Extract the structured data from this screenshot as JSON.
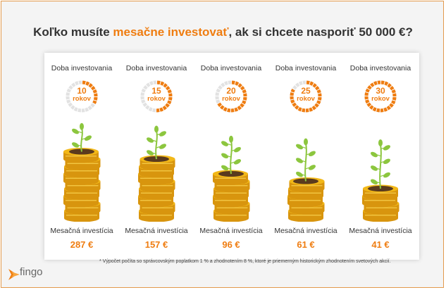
{
  "title": {
    "part1": "Koľko musíte ",
    "highlight": "mesačne investovať",
    "part2": ", ak si chcete nasporiť 50 000 €?"
  },
  "columns": [
    {
      "top_label": "Doba investovania",
      "years": "10",
      "unit": "rokov",
      "progress": 0.33,
      "bottom_label": "Mesačná investícia",
      "amount": "287 €",
      "stack_level": 1.0,
      "plant_level": 0.35
    },
    {
      "top_label": "Doba investovania",
      "years": "15",
      "unit": "rokov",
      "progress": 0.5,
      "bottom_label": "Mesačná investícia",
      "amount": "157 €",
      "stack_level": 0.85,
      "plant_level": 0.5
    },
    {
      "top_label": "Doba investovania",
      "years": "20",
      "unit": "rokov",
      "progress": 0.67,
      "bottom_label": "Mesačná investícia",
      "amount": "96 €",
      "stack_level": 0.7,
      "plant_level": 0.65
    },
    {
      "top_label": "Doba investovania",
      "years": "25",
      "unit": "rokov",
      "progress": 0.83,
      "bottom_label": "Mesačná investícia",
      "amount": "61 €",
      "stack_level": 0.55,
      "plant_level": 0.8
    },
    {
      "top_label": "Doba investovania",
      "years": "30",
      "unit": "rokov",
      "progress": 1.0,
      "bottom_label": "Mesačná investícia",
      "amount": "41 €",
      "stack_level": 0.4,
      "plant_level": 1.0
    }
  ],
  "footnote": "* Výpočet počíta so správcovským poplatkom 1 % a zhodnotením 8 %, ktoré je priemerným historickým zhodnotením svetových akcií.",
  "logo": {
    "text": "fingo",
    "icon": "fingo-logo-icon"
  },
  "colors": {
    "accent": "#ef7d11",
    "coin": "#f2b818",
    "coin_dark": "#d8950e",
    "leaf": "#8cc63e",
    "soil": "#5a3a1e"
  }
}
